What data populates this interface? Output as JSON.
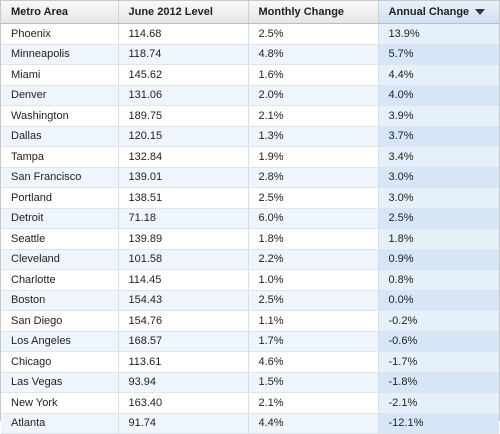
{
  "table": {
    "headers": [
      "Metro Area",
      "June 2012 Level",
      "Monthly Change",
      "Annual Change"
    ],
    "sorted_column": "Annual Change",
    "rows": [
      [
        "Phoenix",
        "114.68",
        "2.5%",
        "13.9%"
      ],
      [
        "Minneapolis",
        "118.74",
        "4.8%",
        "5.7%"
      ],
      [
        "Miami",
        "145.62",
        "1.6%",
        "4.4%"
      ],
      [
        "Denver",
        "131.06",
        "2.0%",
        "4.0%"
      ],
      [
        "Washington",
        "189.75",
        "2.1%",
        "3.9%"
      ],
      [
        "Dallas",
        "120.15",
        "1.3%",
        "3.7%"
      ],
      [
        "Tampa",
        "132.84",
        "1.9%",
        "3.4%"
      ],
      [
        "San Francisco",
        "139.01",
        "2.8%",
        "3.0%"
      ],
      [
        "Portland",
        "138.51",
        "2.5%",
        "3.0%"
      ],
      [
        "Detroit",
        "71.18",
        "6.0%",
        "2.5%"
      ],
      [
        "Seattle",
        "139.89",
        "1.8%",
        "1.8%"
      ],
      [
        "Cleveland",
        "101.58",
        "2.2%",
        "0.9%"
      ],
      [
        "Charlotte",
        "114.45",
        "1.0%",
        "0.8%"
      ],
      [
        "Boston",
        "154.43",
        "2.5%",
        "0.0%"
      ],
      [
        "San Diego",
        "154.76",
        "1.1%",
        "-0.2%"
      ],
      [
        "Los Angeles",
        "168.57",
        "1.7%",
        "-0.6%"
      ],
      [
        "Chicago",
        "113.61",
        "4.6%",
        "-1.7%"
      ],
      [
        "Las Vegas",
        "93.94",
        "1.5%",
        "-1.8%"
      ],
      [
        "New York",
        "163.40",
        "2.1%",
        "-2.1%"
      ],
      [
        "Atlanta",
        "91.74",
        "4.4%",
        "-12.1%"
      ]
    ]
  }
}
